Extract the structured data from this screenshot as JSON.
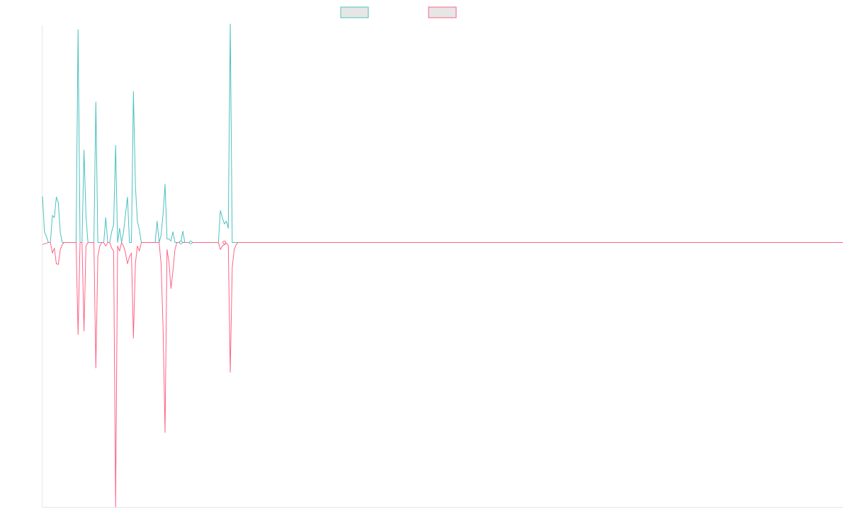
{
  "chart_data": {
    "type": "line",
    "title": "",
    "xlabel": "",
    "ylabel": "",
    "grid": false,
    "legend_position": "top-center",
    "x": [
      0,
      1,
      2,
      3,
      4,
      5,
      6,
      7,
      8,
      9,
      10,
      11,
      12,
      13,
      14,
      15,
      16,
      17,
      18,
      19,
      20,
      21,
      22,
      23,
      24,
      25,
      26,
      27,
      28,
      29,
      30,
      31,
      32,
      33,
      34,
      35,
      36,
      37,
      38,
      39,
      40,
      41,
      42,
      43,
      44,
      45,
      46,
      47,
      48,
      49,
      50,
      51,
      52,
      53,
      54,
      55,
      56,
      57,
      58,
      59,
      60,
      61,
      62,
      63,
      64,
      65,
      66,
      67,
      68,
      69,
      70,
      71,
      72,
      73,
      74,
      75,
      76,
      77,
      78,
      79,
      80,
      81,
      82,
      83,
      84,
      85,
      86,
      87,
      88,
      89,
      90,
      91,
      92,
      93,
      94,
      95,
      96,
      97,
      98,
      99,
      100
    ],
    "xlim": [
      0,
      405
    ],
    "ylim": [
      -373,
      306
    ],
    "series": [
      {
        "name": "",
        "color": "#4bc0c0",
        "values": [
          65,
          15,
          8,
          0,
          0,
          38,
          35,
          64,
          56,
          14,
          0,
          0,
          0,
          0,
          0,
          0,
          0,
          0,
          300,
          0,
          0,
          130,
          37,
          0,
          0,
          0,
          0,
          198,
          0,
          0,
          0,
          0,
          35,
          0,
          0,
          15,
          25,
          137,
          0,
          20,
          0,
          15,
          40,
          64,
          0,
          0,
          213,
          80,
          30,
          18,
          0,
          0,
          0,
          0,
          0,
          0,
          0,
          0,
          30,
          0,
          10,
          40,
          82,
          5,
          5,
          2,
          15,
          0,
          0,
          0,
          0,
          16,
          0,
          0,
          0,
          0,
          0,
          0,
          0,
          0,
          0,
          0,
          0,
          0,
          0,
          0,
          0,
          0,
          0,
          0,
          45,
          35,
          26,
          30,
          20,
          308,
          0,
          0,
          0,
          0,
          0
        ]
      },
      {
        "name": "",
        "color": "#ff6384",
        "values": [
          -3,
          -2,
          -1,
          0,
          0,
          -15,
          -8,
          -30,
          -31,
          -10,
          -3,
          0,
          0,
          0,
          0,
          0,
          0,
          0,
          -130,
          0,
          0,
          -125,
          -5,
          0,
          0,
          0,
          0,
          -177,
          -20,
          -5,
          0,
          0,
          -5,
          0,
          0,
          -8,
          -12,
          -373,
          -5,
          -12,
          0,
          -5,
          -15,
          -30,
          -20,
          -15,
          -135,
          -30,
          -5,
          -12,
          0,
          0,
          0,
          0,
          0,
          0,
          0,
          0,
          0,
          0,
          -30,
          -120,
          -268,
          -10,
          -28,
          -65,
          -40,
          -10,
          0,
          0,
          0,
          0,
          0,
          0,
          0,
          0,
          0,
          0,
          0,
          0,
          0,
          0,
          0,
          0,
          0,
          0,
          0,
          0,
          0,
          0,
          -10,
          -5,
          -3,
          -1,
          -4,
          -183,
          -35,
          -10,
          -3,
          0,
          0
        ]
      }
    ]
  }
}
